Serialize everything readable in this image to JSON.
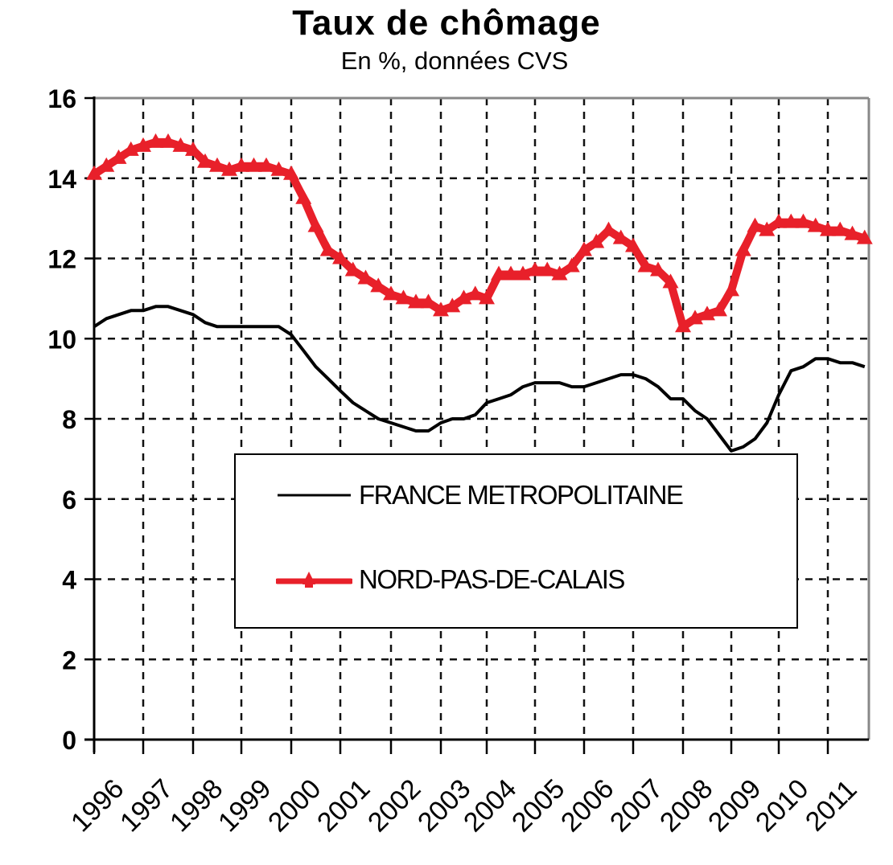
{
  "header": {
    "title": "Taux de chômage",
    "subtitle": "En %, données CVS"
  },
  "legend": {
    "items": [
      {
        "label": "FRANCE METROPOLITAINE",
        "color": "#000000",
        "marker": "none"
      },
      {
        "label": "NORD-PAS-DE-CALAIS",
        "color": "#e8202a",
        "marker": "triangle"
      }
    ]
  },
  "axes": {
    "y_ticks": [
      "0",
      "2",
      "4",
      "6",
      "8",
      "10",
      "12",
      "14",
      "16"
    ],
    "x_ticks": [
      "1996",
      "1997",
      "1998",
      "1999",
      "2000",
      "2001",
      "2002",
      "2003",
      "2004",
      "2005",
      "2006",
      "2007",
      "2008",
      "2009",
      "2010",
      "2011"
    ]
  },
  "colors": {
    "france": "#000000",
    "nord_pas_de_calais": "#e8202a",
    "grid": "#000000",
    "frame": "#888888"
  },
  "chart_data": {
    "type": "line",
    "title": "Taux de chômage",
    "subtitle": "En %, données CVS",
    "xlabel": "",
    "ylabel": "",
    "ylim": [
      0,
      16
    ],
    "y_ticks": [
      0,
      2,
      4,
      6,
      8,
      10,
      12,
      14,
      16
    ],
    "x_tick_labels": [
      "1996",
      "1997",
      "1998",
      "1999",
      "2000",
      "2001",
      "2002",
      "2003",
      "2004",
      "2005",
      "2006",
      "2007",
      "2008",
      "2009",
      "2010",
      "2011"
    ],
    "grid": true,
    "legend_position": "inside-lower-center",
    "x": [
      1996.0,
      1996.25,
      1996.5,
      1996.75,
      1997.0,
      1997.25,
      1997.5,
      1997.75,
      1998.0,
      1998.25,
      1998.5,
      1998.75,
      1999.0,
      1999.25,
      1999.5,
      1999.75,
      2000.0,
      2000.25,
      2000.5,
      2000.75,
      2001.0,
      2001.25,
      2001.5,
      2001.75,
      2002.0,
      2002.25,
      2002.5,
      2002.75,
      2003.0,
      2003.25,
      2003.5,
      2003.75,
      2004.0,
      2004.25,
      2004.5,
      2004.75,
      2005.0,
      2005.25,
      2005.5,
      2005.75,
      2006.0,
      2006.25,
      2006.5,
      2006.75,
      2007.0,
      2007.25,
      2007.5,
      2007.75,
      2008.0,
      2008.25,
      2008.5,
      2008.75,
      2009.0,
      2009.25,
      2009.5,
      2009.75,
      2010.0,
      2010.25,
      2010.5,
      2010.75,
      2011.0,
      2011.25,
      2011.5,
      2011.75
    ],
    "series": [
      {
        "name": "FRANCE METROPOLITAINE",
        "color": "#000000",
        "marker": "none",
        "values": [
          10.3,
          10.5,
          10.6,
          10.7,
          10.7,
          10.8,
          10.8,
          10.7,
          10.6,
          10.4,
          10.3,
          10.3,
          10.3,
          10.3,
          10.3,
          10.3,
          10.1,
          9.7,
          9.3,
          9.0,
          8.7,
          8.4,
          8.2,
          8.0,
          7.9,
          7.8,
          7.7,
          7.7,
          7.9,
          8.0,
          8.0,
          8.1,
          8.4,
          8.5,
          8.6,
          8.8,
          8.9,
          8.9,
          8.9,
          8.8,
          8.8,
          8.9,
          9.0,
          9.1,
          9.1,
          9.0,
          8.8,
          8.5,
          8.5,
          8.2,
          8.0,
          7.6,
          7.2,
          7.3,
          7.5,
          7.9,
          8.6,
          9.2,
          9.3,
          9.5,
          9.5,
          9.4,
          9.4,
          9.3
        ]
      },
      {
        "name": "NORD-PAS-DE-CALAIS",
        "color": "#e8202a",
        "marker": "triangle",
        "values": [
          14.1,
          14.3,
          14.5,
          14.7,
          14.8,
          14.9,
          14.9,
          14.8,
          14.7,
          14.4,
          14.3,
          14.2,
          14.3,
          14.3,
          14.3,
          14.2,
          14.1,
          13.5,
          12.8,
          12.2,
          12.0,
          11.7,
          11.5,
          11.3,
          11.1,
          11.0,
          10.9,
          10.9,
          10.7,
          10.8,
          11.0,
          11.1,
          11.0,
          11.6,
          11.6,
          11.6,
          11.7,
          11.7,
          11.6,
          11.8,
          12.2,
          12.4,
          12.7,
          12.5,
          12.3,
          11.8,
          11.7,
          11.4,
          10.3,
          10.5,
          10.6,
          10.7,
          11.2,
          12.2,
          12.8,
          12.7,
          12.9,
          12.9,
          12.9,
          12.8,
          12.7,
          12.7,
          12.6,
          12.5
        ]
      }
    ]
  }
}
